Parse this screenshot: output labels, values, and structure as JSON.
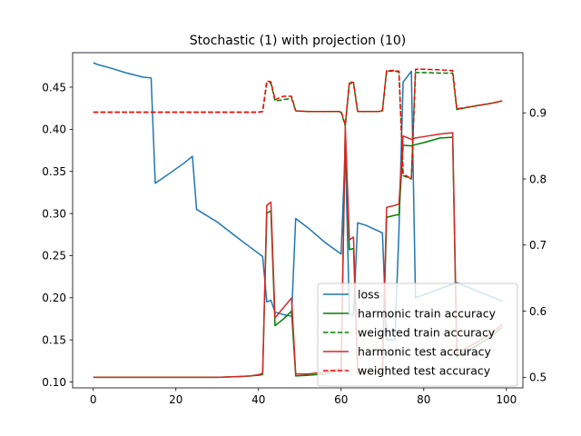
{
  "chart_data": {
    "type": "line",
    "title": "Stochastic (1) with projection (10)",
    "xlabel": "",
    "ylabel_left": "",
    "ylabel_right": "",
    "xlim": [
      -5,
      104
    ],
    "ylim_left": [
      0.093,
      0.491
    ],
    "ylim_right": [
      0.484,
      0.991
    ],
    "x_ticks": [
      0,
      20,
      40,
      60,
      80,
      100
    ],
    "y_ticks_left": [
      0.1,
      0.15,
      0.2,
      0.25,
      0.3,
      0.35,
      0.4,
      0.45
    ],
    "y_ticks_right": [
      0.5,
      0.6,
      0.7,
      0.8,
      0.9
    ],
    "grid": false,
    "legend_position": "lower right",
    "series": [
      {
        "name": "loss",
        "axis": "left",
        "color": "#1f77b4",
        "dash": "solid",
        "x": [
          0,
          1,
          4,
          8,
          12,
          14,
          15,
          18,
          22,
          24,
          25,
          30,
          35,
          38,
          41,
          42,
          43,
          44,
          46,
          48,
          49,
          52,
          56,
          60,
          61,
          62,
          63,
          64,
          66,
          70,
          71,
          73,
          74,
          75,
          77,
          78,
          88,
          92,
          96,
          99
        ],
        "values": [
          0.479,
          0.477,
          0.473,
          0.467,
          0.462,
          0.461,
          0.336,
          0.346,
          0.36,
          0.368,
          0.305,
          0.29,
          0.271,
          0.26,
          0.249,
          0.195,
          0.197,
          0.183,
          0.18,
          0.178,
          0.294,
          0.283,
          0.266,
          0.252,
          0.38,
          0.18,
          0.18,
          0.289,
          0.286,
          0.277,
          0.15,
          0.15,
          0.28,
          0.456,
          0.469,
          0.2,
          0.218,
          0.21,
          0.202,
          0.196
        ]
      },
      {
        "name": "harmonic train accuracy",
        "axis": "right",
        "color": "#008000",
        "dash": "solid",
        "x": [
          0,
          10,
          20,
          30,
          35,
          38,
          40,
          41,
          42,
          43,
          44,
          46,
          48,
          49,
          52,
          56,
          59,
          60,
          61,
          62,
          63,
          64,
          66,
          69,
          70,
          71,
          73,
          74,
          75,
          77,
          78,
          80,
          84,
          87,
          88,
          92,
          96,
          99
        ],
        "values": [
          0.5,
          0.5,
          0.5,
          0.5,
          0.501,
          0.502,
          0.503,
          0.504,
          0.748,
          0.752,
          0.578,
          0.588,
          0.6,
          0.502,
          0.503,
          0.505,
          0.509,
          0.51,
          0.87,
          0.693,
          0.695,
          0.508,
          0.508,
          0.508,
          0.509,
          0.742,
          0.745,
          0.746,
          0.851,
          0.85,
          0.852,
          0.855,
          0.862,
          0.863,
          0.531,
          0.545,
          0.56,
          0.576
        ]
      },
      {
        "name": "weighted train accuracy",
        "axis": "right",
        "color": "#008000",
        "dash": "dashed",
        "x": [
          0,
          10,
          20,
          30,
          40,
          41,
          42,
          43,
          44,
          46,
          48,
          49,
          52,
          56,
          59,
          60,
          61,
          62,
          63,
          64,
          66,
          69,
          70,
          71,
          73,
          74,
          75,
          77,
          78,
          80,
          84,
          87,
          88,
          92,
          96,
          99
        ],
        "values": [
          0.901,
          0.901,
          0.901,
          0.901,
          0.901,
          0.902,
          0.945,
          0.945,
          0.918,
          0.92,
          0.922,
          0.903,
          0.902,
          0.902,
          0.902,
          0.901,
          0.88,
          0.945,
          0.944,
          0.902,
          0.902,
          0.902,
          0.903,
          0.963,
          0.963,
          0.962,
          0.805,
          0.8,
          0.961,
          0.961,
          0.96,
          0.96,
          0.905,
          0.91,
          0.914,
          0.918
        ]
      },
      {
        "name": "harmonic test accuracy",
        "axis": "right",
        "color": "#d62728",
        "dash": "solid",
        "x": [
          0,
          10,
          20,
          30,
          35,
          38,
          40,
          41,
          42,
          43,
          44,
          46,
          48,
          49,
          52,
          56,
          59,
          60,
          61,
          62,
          63,
          64,
          66,
          69,
          70,
          71,
          73,
          74,
          75,
          77,
          78,
          80,
          84,
          87,
          88,
          92,
          96,
          99
        ],
        "values": [
          0.5,
          0.5,
          0.5,
          0.5,
          0.501,
          0.502,
          0.504,
          0.506,
          0.76,
          0.765,
          0.59,
          0.605,
          0.62,
          0.505,
          0.505,
          0.508,
          0.512,
          0.514,
          0.88,
          0.708,
          0.712,
          0.508,
          0.508,
          0.508,
          0.51,
          0.757,
          0.76,
          0.762,
          0.865,
          0.86,
          0.862,
          0.864,
          0.868,
          0.87,
          0.536,
          0.55,
          0.565,
          0.58
        ]
      },
      {
        "name": "weighted test accuracy",
        "axis": "right",
        "color": "#ff0000",
        "dash": "dashed",
        "x": [
          0,
          10,
          20,
          30,
          40,
          41,
          42,
          43,
          44,
          46,
          48,
          49,
          52,
          56,
          59,
          60,
          61,
          62,
          63,
          64,
          66,
          69,
          70,
          71,
          73,
          74,
          75,
          77,
          78,
          80,
          84,
          87,
          88,
          92,
          96,
          99
        ],
        "values": [
          0.901,
          0.901,
          0.901,
          0.901,
          0.901,
          0.902,
          0.948,
          0.947,
          0.92,
          0.925,
          0.925,
          0.903,
          0.902,
          0.902,
          0.902,
          0.902,
          0.882,
          0.947,
          0.946,
          0.902,
          0.902,
          0.902,
          0.903,
          0.964,
          0.964,
          0.963,
          0.808,
          0.8,
          0.966,
          0.966,
          0.965,
          0.964,
          0.906,
          0.91,
          0.914,
          0.918
        ]
      }
    ]
  }
}
